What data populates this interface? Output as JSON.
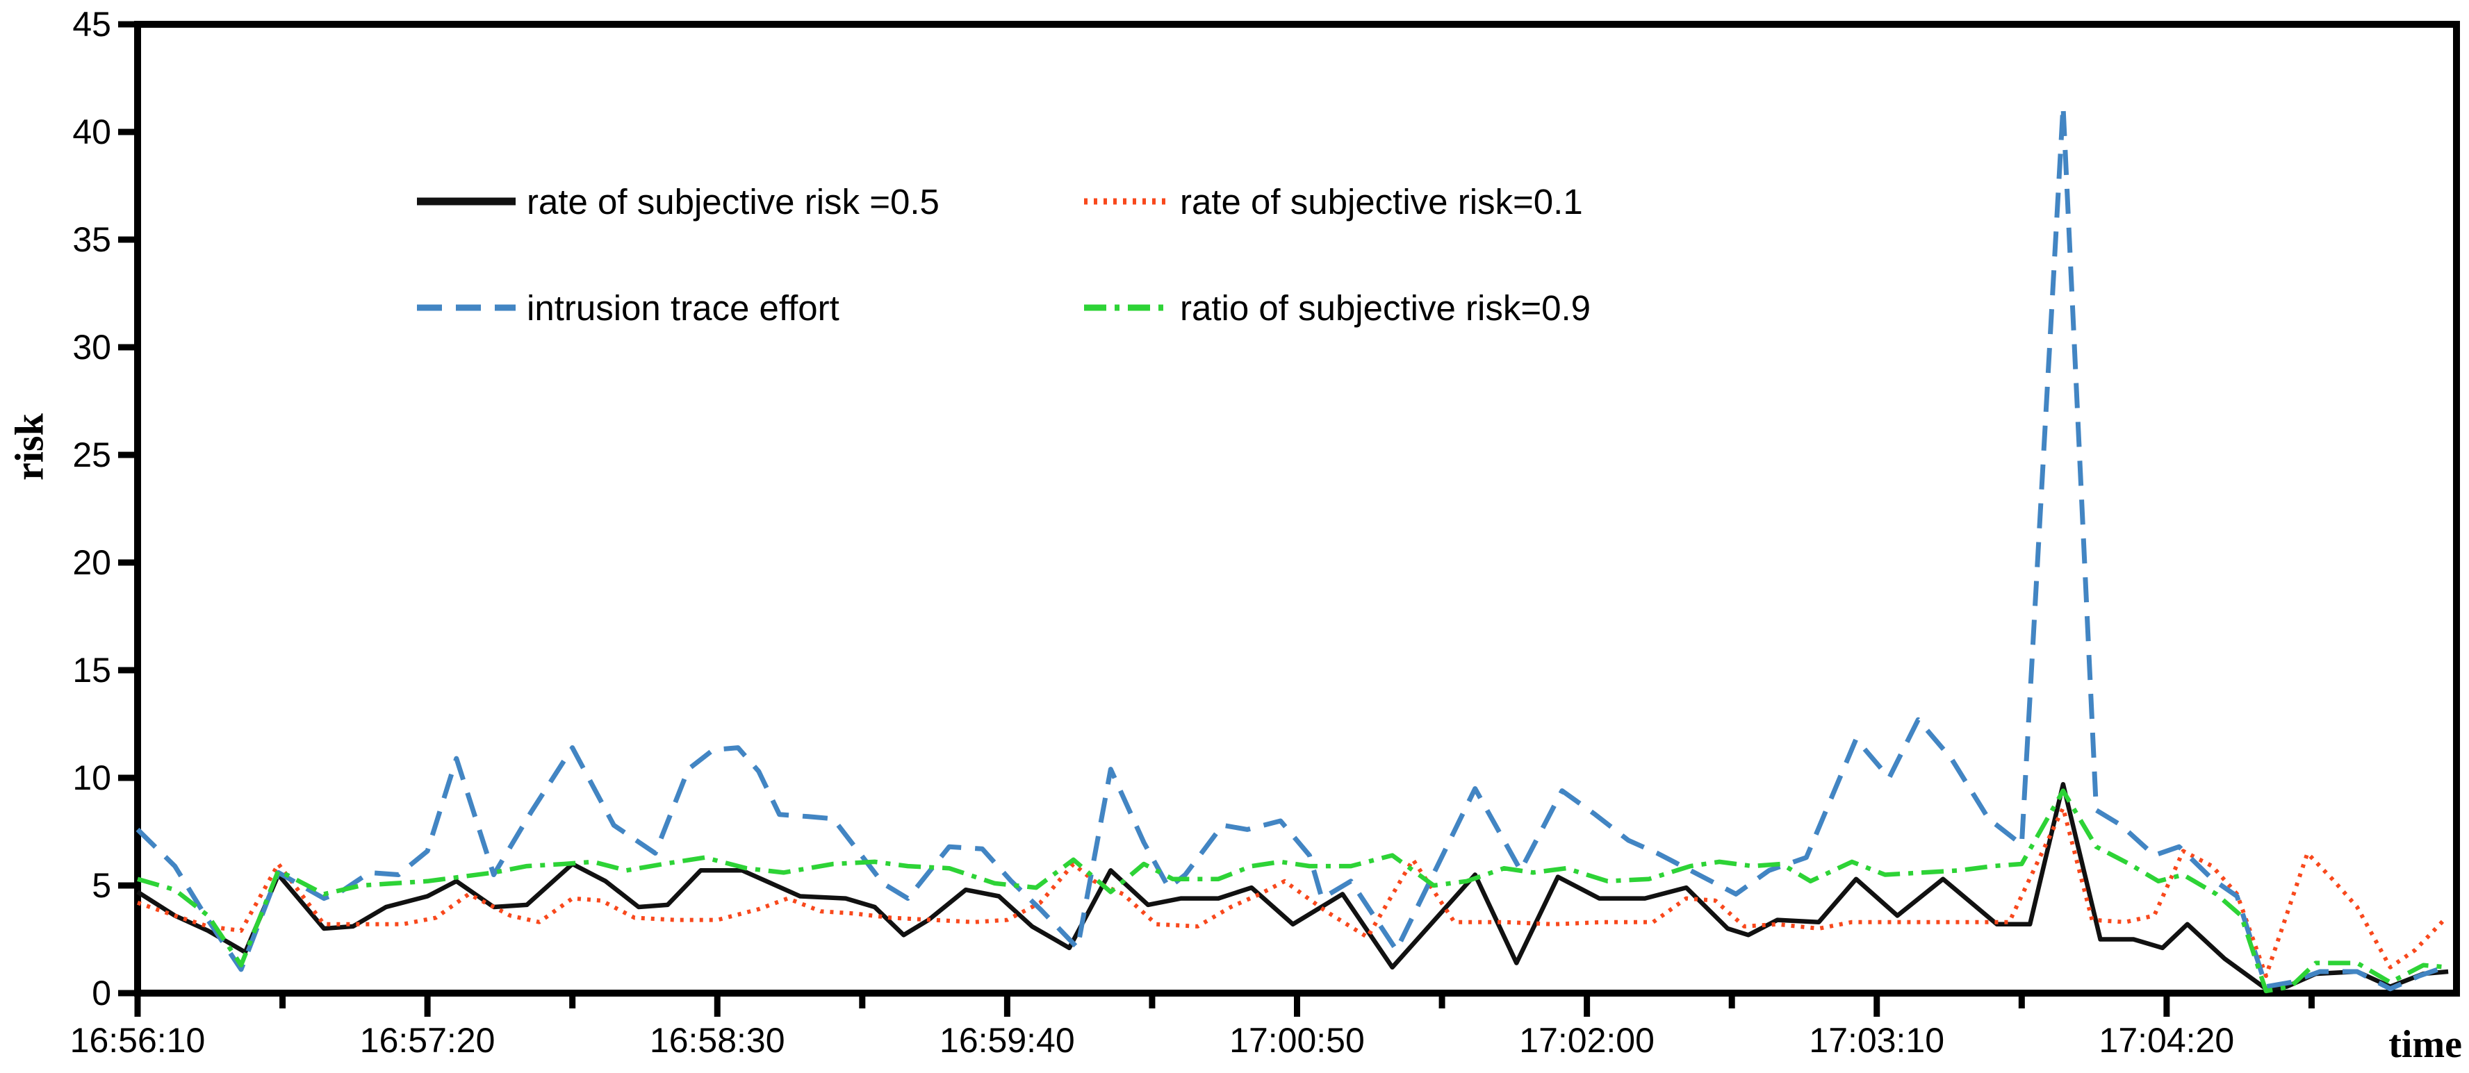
{
  "page": {
    "background": "#ffffff",
    "description": "line chart of intrusion risk over time"
  },
  "chart_data": {
    "type": "line",
    "title": "",
    "xlabel": "time",
    "ylabel": "risk",
    "grid": false,
    "legend_position": "inside top-left, two columns, no border",
    "ylim": [
      0,
      45
    ],
    "ytick_step": 5,
    "y_tick_labels": [
      "0",
      "5",
      "10",
      "15",
      "20",
      "25",
      "30",
      "35",
      "40",
      "45"
    ],
    "x_tick_labels": [
      "16:56:10",
      "16:57:20",
      "16:58:30",
      "16:59:40",
      "17:00:50",
      "17:02:00",
      "17:03:10",
      "17:04:20"
    ],
    "x_tick_seconds": [
      0,
      70,
      140,
      210,
      280,
      350,
      420,
      490
    ],
    "x_minor_tick_seconds": [
      35,
      105,
      175,
      245,
      315,
      385,
      455,
      525
    ],
    "x_range_seconds": [
      0,
      560
    ],
    "x_axis_note": "x values are seconds after 16:56:10",
    "series": [
      {
        "name": "rate of subjective risk =0.5",
        "color": "#111111",
        "line_style": "solid",
        "points": [
          [
            0,
            4.7
          ],
          [
            9,
            3.6
          ],
          [
            17,
            2.9
          ],
          [
            26,
            1.9
          ],
          [
            34,
            5.5
          ],
          [
            45,
            3.0
          ],
          [
            52,
            3.1
          ],
          [
            60,
            4.0
          ],
          [
            70,
            4.5
          ],
          [
            77,
            5.2
          ],
          [
            86,
            4.0
          ],
          [
            94,
            4.1
          ],
          [
            105,
            6.0
          ],
          [
            113,
            5.2
          ],
          [
            121,
            4.0
          ],
          [
            128,
            4.1
          ],
          [
            136,
            5.7
          ],
          [
            146,
            5.7
          ],
          [
            153,
            5.1
          ],
          [
            160,
            4.5
          ],
          [
            171,
            4.4
          ],
          [
            178,
            4.0
          ],
          [
            185,
            2.7
          ],
          [
            191,
            3.4
          ],
          [
            200,
            4.8
          ],
          [
            208,
            4.5
          ],
          [
            216,
            3.1
          ],
          [
            225,
            2.1
          ],
          [
            235,
            5.7
          ],
          [
            244,
            4.1
          ],
          [
            252,
            4.4
          ],
          [
            261,
            4.4
          ],
          [
            269,
            4.9
          ],
          [
            279,
            3.2
          ],
          [
            291,
            4.6
          ],
          [
            303,
            1.2
          ],
          [
            323,
            5.5
          ],
          [
            333,
            1.4
          ],
          [
            343,
            5.4
          ],
          [
            353,
            4.4
          ],
          [
            364,
            4.4
          ],
          [
            374,
            4.9
          ],
          [
            384,
            3.0
          ],
          [
            389,
            2.7
          ],
          [
            396,
            3.4
          ],
          [
            406,
            3.3
          ],
          [
            415,
            5.3
          ],
          [
            425,
            3.6
          ],
          [
            436,
            5.3
          ],
          [
            449,
            3.2
          ],
          [
            457,
            3.2
          ],
          [
            465,
            9.7
          ],
          [
            474,
            2.5
          ],
          [
            482,
            2.5
          ],
          [
            489,
            2.1
          ],
          [
            495,
            3.2
          ],
          [
            504,
            1.6
          ],
          [
            514,
            0.2
          ],
          [
            519,
            0.3
          ],
          [
            526,
            0.9
          ],
          [
            536,
            1.0
          ],
          [
            544,
            0.3
          ],
          [
            552,
            0.9
          ],
          [
            558,
            1.0
          ]
        ]
      },
      {
        "name": "rate of subjective risk=0.1",
        "color": "#f8481c",
        "line_style": "dotted",
        "points": [
          [
            0,
            4.2
          ],
          [
            9,
            3.6
          ],
          [
            17,
            3.1
          ],
          [
            25,
            2.9
          ],
          [
            34,
            6.0
          ],
          [
            45,
            3.2
          ],
          [
            55,
            3.2
          ],
          [
            64,
            3.2
          ],
          [
            72,
            3.5
          ],
          [
            80,
            4.6
          ],
          [
            90,
            3.6
          ],
          [
            97,
            3.3
          ],
          [
            105,
            4.4
          ],
          [
            112,
            4.3
          ],
          [
            120,
            3.5
          ],
          [
            130,
            3.4
          ],
          [
            140,
            3.4
          ],
          [
            150,
            3.9
          ],
          [
            157,
            4.4
          ],
          [
            165,
            3.8
          ],
          [
            173,
            3.7
          ],
          [
            182,
            3.5
          ],
          [
            192,
            3.4
          ],
          [
            202,
            3.3
          ],
          [
            210,
            3.4
          ],
          [
            218,
            4.2
          ],
          [
            226,
            6.0
          ],
          [
            231,
            5.2
          ],
          [
            238,
            4.6
          ],
          [
            246,
            3.2
          ],
          [
            256,
            3.1
          ],
          [
            264,
            4.0
          ],
          [
            271,
            4.6
          ],
          [
            277,
            5.2
          ],
          [
            287,
            3.8
          ],
          [
            297,
            2.6
          ],
          [
            308,
            6.2
          ],
          [
            318,
            3.3
          ],
          [
            330,
            3.3
          ],
          [
            342,
            3.2
          ],
          [
            354,
            3.3
          ],
          [
            366,
            3.3
          ],
          [
            374,
            4.4
          ],
          [
            381,
            4.3
          ],
          [
            388,
            3.1
          ],
          [
            396,
            3.2
          ],
          [
            406,
            3.0
          ],
          [
            414,
            3.3
          ],
          [
            424,
            3.3
          ],
          [
            434,
            3.3
          ],
          [
            444,
            3.3
          ],
          [
            452,
            3.3
          ],
          [
            465,
            8.6
          ],
          [
            472,
            3.4
          ],
          [
            480,
            3.3
          ],
          [
            487,
            3.6
          ],
          [
            494,
            6.6
          ],
          [
            501,
            5.9
          ],
          [
            507,
            4.6
          ],
          [
            514,
            0.8
          ],
          [
            524,
            6.5
          ],
          [
            530,
            5.3
          ],
          [
            536,
            4.0
          ],
          [
            544,
            1.2
          ],
          [
            550,
            2.0
          ],
          [
            557,
            3.4
          ]
        ]
      },
      {
        "name": "intrusion trace effort",
        "color": "#4285c3",
        "line_style": "dashed",
        "points": [
          [
            0,
            7.6
          ],
          [
            9,
            5.9
          ],
          [
            17,
            3.4
          ],
          [
            25,
            1.1
          ],
          [
            34,
            5.6
          ],
          [
            45,
            4.4
          ],
          [
            49,
            4.7
          ],
          [
            56,
            5.6
          ],
          [
            63,
            5.5
          ],
          [
            70,
            6.6
          ],
          [
            77,
            10.9
          ],
          [
            86,
            5.5
          ],
          [
            95,
            8.4
          ],
          [
            105,
            11.4
          ],
          [
            115,
            7.8
          ],
          [
            125,
            6.5
          ],
          [
            133,
            10.4
          ],
          [
            139,
            11.3
          ],
          [
            145,
            11.4
          ],
          [
            150,
            10.3
          ],
          [
            155,
            8.3
          ],
          [
            162,
            8.2
          ],
          [
            168,
            8.1
          ],
          [
            174,
            6.6
          ],
          [
            180,
            5.1
          ],
          [
            186,
            4.4
          ],
          [
            196,
            6.8
          ],
          [
            204,
            6.7
          ],
          [
            211,
            5.2
          ],
          [
            218,
            3.9
          ],
          [
            227,
            2.1
          ],
          [
            235,
            10.4
          ],
          [
            243,
            7.0
          ],
          [
            249,
            4.9
          ],
          [
            253,
            5.5
          ],
          [
            262,
            7.8
          ],
          [
            268,
            7.6
          ],
          [
            276,
            8.0
          ],
          [
            283,
            6.4
          ],
          [
            286,
            4.4
          ],
          [
            293,
            5.2
          ],
          [
            304,
            2.0
          ],
          [
            323,
            9.5
          ],
          [
            334,
            5.7
          ],
          [
            344,
            9.4
          ],
          [
            352,
            8.3
          ],
          [
            360,
            7.1
          ],
          [
            367,
            6.5
          ],
          [
            380,
            5.2
          ],
          [
            386,
            4.6
          ],
          [
            394,
            5.7
          ],
          [
            403,
            6.3
          ],
          [
            415,
            11.8
          ],
          [
            423,
            10.0
          ],
          [
            430,
            12.7
          ],
          [
            438,
            10.9
          ],
          [
            447,
            8.1
          ],
          [
            455,
            6.9
          ],
          [
            465,
            41.2
          ],
          [
            473,
            8.5
          ],
          [
            479,
            7.8
          ],
          [
            487,
            6.4
          ],
          [
            493,
            6.8
          ],
          [
            501,
            5.3
          ],
          [
            507,
            4.5
          ],
          [
            514,
            0.3
          ],
          [
            520,
            0.5
          ],
          [
            527,
            1.0
          ],
          [
            536,
            1.0
          ],
          [
            544,
            0.2
          ],
          [
            551,
            0.8
          ],
          [
            557,
            1.2
          ]
        ]
      },
      {
        "name": "ratio of subjective risk=0.9",
        "color": "#2dd336",
        "line_style": "dash-dot",
        "points": [
          [
            0,
            5.3
          ],
          [
            9,
            4.8
          ],
          [
            17,
            3.6
          ],
          [
            25,
            1.3
          ],
          [
            34,
            5.7
          ],
          [
            45,
            4.6
          ],
          [
            54,
            5.0
          ],
          [
            62,
            5.1
          ],
          [
            70,
            5.2
          ],
          [
            78,
            5.4
          ],
          [
            86,
            5.6
          ],
          [
            94,
            5.9
          ],
          [
            103,
            6.0
          ],
          [
            110,
            6.1
          ],
          [
            118,
            5.7
          ],
          [
            127,
            6.0
          ],
          [
            137,
            6.3
          ],
          [
            147,
            5.8
          ],
          [
            156,
            5.6
          ],
          [
            168,
            6.0
          ],
          [
            178,
            6.1
          ],
          [
            186,
            5.9
          ],
          [
            196,
            5.8
          ],
          [
            207,
            5.1
          ],
          [
            217,
            4.9
          ],
          [
            226,
            6.2
          ],
          [
            235,
            4.7
          ],
          [
            243,
            6.0
          ],
          [
            250,
            5.3
          ],
          [
            261,
            5.3
          ],
          [
            269,
            5.9
          ],
          [
            276,
            6.1
          ],
          [
            283,
            5.9
          ],
          [
            293,
            5.9
          ],
          [
            303,
            6.4
          ],
          [
            313,
            5.0
          ],
          [
            321,
            5.2
          ],
          [
            330,
            5.8
          ],
          [
            337,
            5.6
          ],
          [
            345,
            5.8
          ],
          [
            355,
            5.2
          ],
          [
            365,
            5.3
          ],
          [
            375,
            5.9
          ],
          [
            382,
            6.1
          ],
          [
            390,
            5.9
          ],
          [
            397,
            6.0
          ],
          [
            404,
            5.2
          ],
          [
            414,
            6.1
          ],
          [
            422,
            5.5
          ],
          [
            431,
            5.6
          ],
          [
            440,
            5.7
          ],
          [
            448,
            5.9
          ],
          [
            455,
            6.0
          ],
          [
            465,
            9.4
          ],
          [
            473,
            6.8
          ],
          [
            481,
            6.0
          ],
          [
            488,
            5.2
          ],
          [
            494,
            5.5
          ],
          [
            502,
            4.6
          ],
          [
            508,
            3.6
          ],
          [
            514,
            0.1
          ],
          [
            520,
            0.3
          ],
          [
            526,
            1.4
          ],
          [
            536,
            1.4
          ],
          [
            544,
            0.5
          ],
          [
            552,
            1.3
          ],
          [
            558,
            1.2
          ]
        ]
      }
    ]
  }
}
